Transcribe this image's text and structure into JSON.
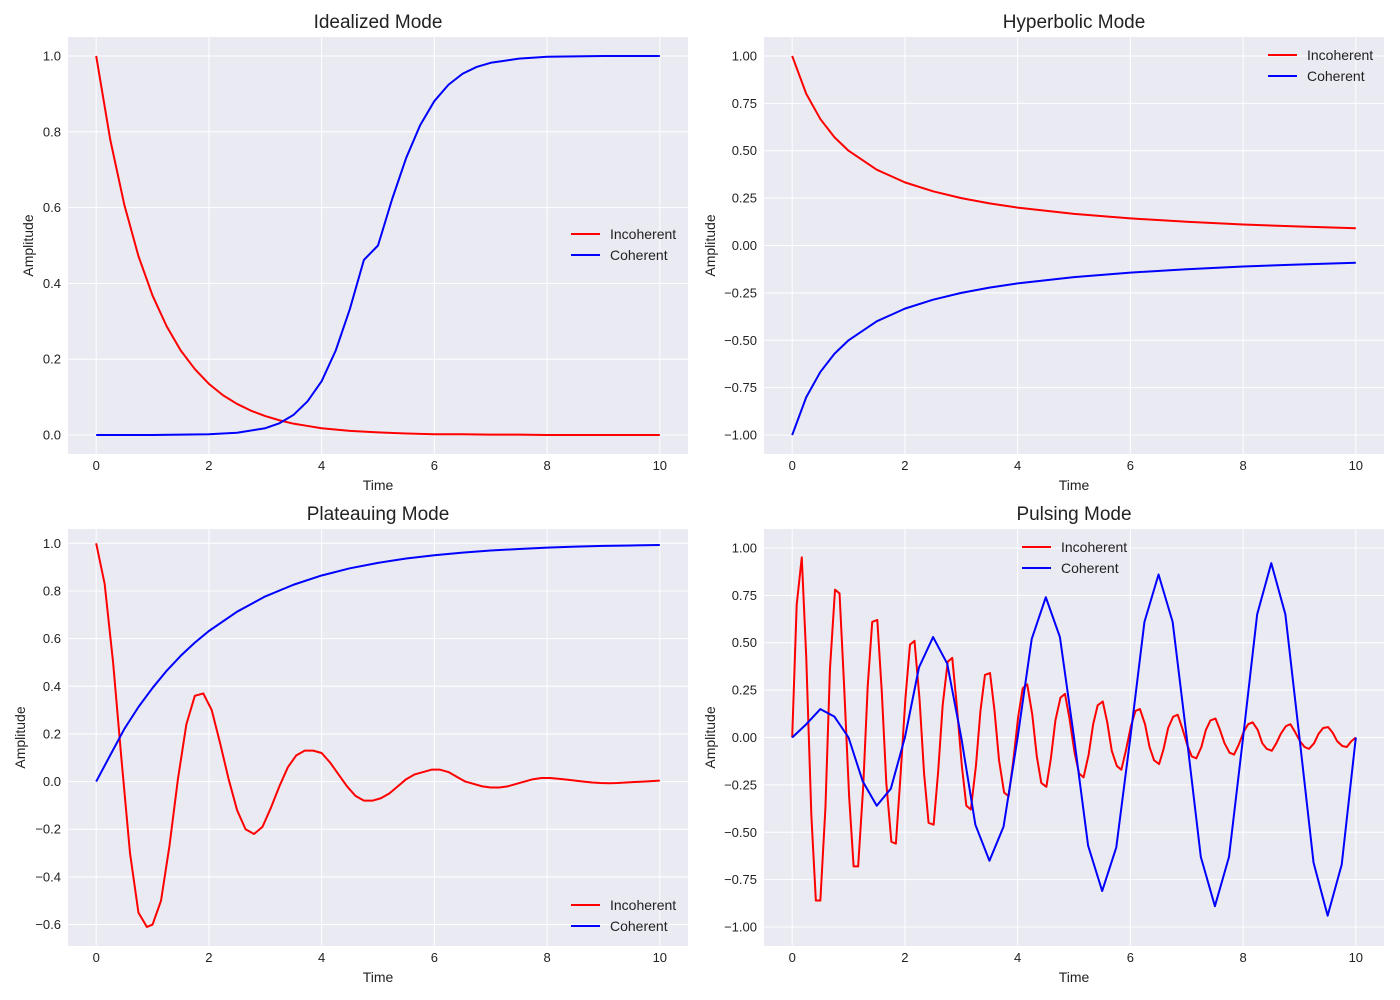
{
  "chart_data": [
    {
      "type": "line",
      "title": "Idealized Mode",
      "xlabel": "Time",
      "ylabel": "Amplitude",
      "xlim": [
        -0.5,
        10.5
      ],
      "ylim": [
        -0.05,
        1.05
      ],
      "xticks": [
        0,
        2,
        4,
        6,
        8,
        10
      ],
      "yticks": [
        0.0,
        0.2,
        0.4,
        0.6,
        0.8,
        1.0
      ],
      "ytick_labels": [
        "0.0",
        "0.2",
        "0.4",
        "0.6",
        "0.8",
        "1.0"
      ],
      "grid": true,
      "legend_position": "center-right",
      "series": [
        {
          "name": "Incoherent",
          "color": "#ff0000",
          "x": [
            0,
            0.25,
            0.5,
            0.75,
            1,
            1.25,
            1.5,
            1.75,
            2,
            2.25,
            2.5,
            2.75,
            3,
            3.25,
            3.5,
            3.75,
            4,
            4.5,
            5,
            5.5,
            6,
            6.5,
            7,
            7.5,
            8,
            8.5,
            9,
            9.5,
            10
          ],
          "y": [
            1.0,
            0.779,
            0.607,
            0.472,
            0.368,
            0.287,
            0.223,
            0.174,
            0.135,
            0.105,
            0.082,
            0.064,
            0.05,
            0.039,
            0.03,
            0.024,
            0.018,
            0.011,
            0.007,
            0.004,
            0.002,
            0.002,
            0.001,
            0.001,
            0.0,
            0.0,
            0.0,
            0.0,
            0.0
          ]
        },
        {
          "name": "Coherent",
          "color": "#0000ff",
          "x": [
            0,
            0.5,
            1,
            1.5,
            2,
            2.5,
            3,
            3.25,
            3.5,
            3.75,
            4,
            4.25,
            4.5,
            4.75,
            5,
            5.25,
            5.5,
            5.75,
            6,
            6.25,
            6.5,
            6.75,
            7,
            7.5,
            8,
            8.5,
            9,
            9.5,
            10
          ],
          "y": [
            0.0,
            0.0,
            0.0,
            0.001,
            0.002,
            0.006,
            0.018,
            0.031,
            0.053,
            0.089,
            0.142,
            0.223,
            0.332,
            0.462,
            0.5,
            0.622,
            0.731,
            0.818,
            0.881,
            0.924,
            0.953,
            0.971,
            0.982,
            0.993,
            0.998,
            0.999,
            1.0,
            1.0,
            1.0
          ]
        }
      ]
    },
    {
      "type": "line",
      "title": "Hyperbolic Mode",
      "xlabel": "Time",
      "ylabel": "Amplitude",
      "xlim": [
        -0.5,
        10.5
      ],
      "ylim": [
        -1.1,
        1.1
      ],
      "xticks": [
        0,
        2,
        4,
        6,
        8,
        10
      ],
      "yticks": [
        -1.0,
        -0.75,
        -0.5,
        -0.25,
        0.0,
        0.25,
        0.5,
        0.75,
        1.0
      ],
      "ytick_labels": [
        "−1.00",
        "−0.75",
        "−0.50",
        "−0.25",
        "0.00",
        "0.25",
        "0.50",
        "0.75",
        "1.00"
      ],
      "grid": true,
      "legend_position": "top-right",
      "series": [
        {
          "name": "Incoherent",
          "color": "#ff0000",
          "x": [
            0,
            0.25,
            0.5,
            0.75,
            1,
            1.5,
            2,
            2.5,
            3,
            3.5,
            4,
            5,
            6,
            7,
            8,
            9,
            10
          ],
          "y": [
            1.0,
            0.8,
            0.667,
            0.571,
            0.5,
            0.4,
            0.333,
            0.286,
            0.25,
            0.222,
            0.2,
            0.167,
            0.143,
            0.125,
            0.111,
            0.1,
            0.091
          ]
        },
        {
          "name": "Coherent",
          "color": "#0000ff",
          "x": [
            0,
            0.25,
            0.5,
            0.75,
            1,
            1.5,
            2,
            2.5,
            3,
            3.5,
            4,
            5,
            6,
            7,
            8,
            9,
            10
          ],
          "y": [
            -1.0,
            -0.8,
            -0.667,
            -0.571,
            -0.5,
            -0.4,
            -0.333,
            -0.286,
            -0.25,
            -0.222,
            -0.2,
            -0.167,
            -0.143,
            -0.125,
            -0.111,
            -0.1,
            -0.091
          ]
        }
      ]
    },
    {
      "type": "line",
      "title": "Plateauing Mode",
      "xlabel": "Time",
      "ylabel": "Amplitude",
      "xlim": [
        -0.5,
        10.5
      ],
      "ylim": [
        -0.69,
        1.06
      ],
      "xticks": [
        0,
        2,
        4,
        6,
        8,
        10
      ],
      "yticks": [
        -0.6,
        -0.4,
        -0.2,
        0.0,
        0.2,
        0.4,
        0.6,
        0.8,
        1.0
      ],
      "ytick_labels": [
        "−0.6",
        "−0.4",
        "−0.2",
        "0.0",
        "0.2",
        "0.4",
        "0.6",
        "0.8",
        "1.0"
      ],
      "grid": true,
      "legend_position": "bottom-right",
      "series": [
        {
          "name": "Incoherent",
          "color": "#ff0000",
          "x": [
            0,
            0.15,
            0.3,
            0.45,
            0.6,
            0.75,
            0.9,
            1.0,
            1.15,
            1.3,
            1.45,
            1.6,
            1.75,
            1.9,
            2.05,
            2.2,
            2.35,
            2.5,
            2.65,
            2.8,
            2.95,
            3.1,
            3.25,
            3.4,
            3.55,
            3.7,
            3.85,
            4.0,
            4.15,
            4.3,
            4.45,
            4.6,
            4.75,
            4.9,
            5.05,
            5.2,
            5.35,
            5.5,
            5.65,
            5.8,
            5.95,
            6.1,
            6.25,
            6.4,
            6.55,
            6.7,
            6.85,
            7.0,
            7.15,
            7.3,
            7.45,
            7.6,
            7.75,
            7.9,
            8.05,
            8.2,
            8.35,
            8.5,
            8.65,
            8.8,
            8.95,
            9.1,
            9.25,
            9.4,
            9.55,
            9.7,
            9.85,
            10.0
          ],
          "y": [
            1.0,
            0.83,
            0.5,
            0.09,
            -0.3,
            -0.55,
            -0.61,
            -0.6,
            -0.5,
            -0.27,
            0.01,
            0.24,
            0.36,
            0.37,
            0.3,
            0.16,
            0.01,
            -0.12,
            -0.2,
            -0.22,
            -0.19,
            -0.11,
            -0.02,
            0.06,
            0.11,
            0.13,
            0.13,
            0.12,
            0.08,
            0.03,
            -0.02,
            -0.06,
            -0.08,
            -0.08,
            -0.07,
            -0.05,
            -0.02,
            0.01,
            0.03,
            0.04,
            0.05,
            0.05,
            0.04,
            0.02,
            0.0,
            -0.01,
            -0.02,
            -0.025,
            -0.025,
            -0.02,
            -0.01,
            0.0,
            0.01,
            0.015,
            0.015,
            0.012,
            0.008,
            0.004,
            0.0,
            -0.004,
            -0.006,
            -0.007,
            -0.006,
            -0.004,
            -0.002,
            0.0,
            0.002,
            0.004
          ]
        },
        {
          "name": "Coherent",
          "color": "#0000ff",
          "x": [
            0,
            0.25,
            0.5,
            0.75,
            1,
            1.25,
            1.5,
            1.75,
            2,
            2.5,
            3,
            3.5,
            4,
            4.5,
            5,
            5.5,
            6,
            6.5,
            7,
            7.5,
            8,
            8.5,
            9,
            9.5,
            10
          ],
          "y": [
            0.0,
            0.111,
            0.221,
            0.313,
            0.393,
            0.465,
            0.528,
            0.583,
            0.632,
            0.713,
            0.777,
            0.826,
            0.865,
            0.895,
            0.918,
            0.936,
            0.95,
            0.961,
            0.97,
            0.976,
            0.982,
            0.986,
            0.989,
            0.991,
            0.993
          ]
        }
      ]
    },
    {
      "type": "line",
      "title": "Pulsing Mode",
      "xlabel": "Time",
      "ylabel": "Amplitude",
      "xlim": [
        -0.5,
        10.5
      ],
      "ylim": [
        -1.1,
        1.1
      ],
      "xticks": [
        0,
        2,
        4,
        6,
        8,
        10
      ],
      "yticks": [
        -1.0,
        -0.75,
        -0.5,
        -0.25,
        0.0,
        0.25,
        0.5,
        0.75,
        1.0
      ],
      "ytick_labels": [
        "−1.00",
        "−0.75",
        "−0.50",
        "−0.25",
        "0.00",
        "0.25",
        "0.50",
        "0.75",
        "1.00"
      ],
      "grid": true,
      "legend_position": "top-center",
      "series": [
        {
          "name": "Incoherent",
          "color": "#ff0000",
          "x": [
            0,
            0.08,
            0.17,
            0.25,
            0.34,
            0.42,
            0.5,
            0.59,
            0.67,
            0.76,
            0.84,
            0.92,
            1.01,
            1.09,
            1.17,
            1.26,
            1.34,
            1.42,
            1.51,
            1.59,
            1.67,
            1.76,
            1.84,
            1.92,
            2.01,
            2.09,
            2.17,
            2.26,
            2.34,
            2.42,
            2.51,
            2.59,
            2.67,
            2.76,
            2.84,
            2.92,
            3.01,
            3.09,
            3.17,
            3.26,
            3.34,
            3.42,
            3.51,
            3.59,
            3.67,
            3.76,
            3.84,
            3.92,
            4.01,
            4.09,
            4.17,
            4.26,
            4.34,
            4.42,
            4.51,
            4.59,
            4.67,
            4.76,
            4.84,
            4.92,
            5.01,
            5.09,
            5.17,
            5.26,
            5.34,
            5.42,
            5.51,
            5.59,
            5.67,
            5.76,
            5.84,
            5.92,
            6.01,
            6.09,
            6.17,
            6.26,
            6.34,
            6.42,
            6.51,
            6.59,
            6.67,
            6.76,
            6.84,
            6.92,
            7.01,
            7.09,
            7.17,
            7.26,
            7.34,
            7.42,
            7.51,
            7.59,
            7.67,
            7.76,
            7.84,
            7.92,
            8.01,
            8.09,
            8.17,
            8.26,
            8.34,
            8.42,
            8.51,
            8.59,
            8.67,
            8.76,
            8.84,
            8.92,
            9.01,
            9.09,
            9.17,
            9.26,
            9.34,
            9.42,
            9.51,
            9.59,
            9.67,
            9.76,
            9.84,
            9.92,
            10.0
          ],
          "y": [
            0.0,
            0.7,
            0.95,
            0.42,
            -0.41,
            -0.86,
            -0.86,
            -0.37,
            0.36,
            0.78,
            0.76,
            0.28,
            -0.31,
            -0.68,
            -0.68,
            -0.26,
            0.27,
            0.61,
            0.62,
            0.24,
            -0.24,
            -0.55,
            -0.56,
            -0.21,
            0.21,
            0.49,
            0.51,
            0.2,
            -0.19,
            -0.45,
            -0.46,
            -0.18,
            0.17,
            0.4,
            0.42,
            0.17,
            -0.15,
            -0.36,
            -0.38,
            -0.15,
            0.14,
            0.33,
            0.34,
            0.14,
            -0.12,
            -0.29,
            -0.31,
            -0.13,
            0.11,
            0.26,
            0.28,
            0.12,
            -0.1,
            -0.24,
            -0.26,
            -0.11,
            0.09,
            0.21,
            0.23,
            0.1,
            -0.08,
            -0.19,
            -0.21,
            -0.09,
            0.07,
            0.17,
            0.19,
            0.08,
            -0.07,
            -0.15,
            -0.17,
            -0.07,
            0.06,
            0.14,
            0.15,
            0.07,
            -0.05,
            -0.12,
            -0.14,
            -0.06,
            0.05,
            0.11,
            0.12,
            0.05,
            -0.04,
            -0.1,
            -0.11,
            -0.05,
            0.04,
            0.09,
            0.1,
            0.04,
            -0.03,
            -0.08,
            -0.09,
            -0.04,
            0.03,
            0.07,
            0.08,
            0.04,
            -0.03,
            -0.06,
            -0.07,
            -0.03,
            0.02,
            0.06,
            0.07,
            0.03,
            -0.02,
            -0.05,
            -0.06,
            -0.03,
            0.02,
            0.05,
            0.055,
            0.025,
            -0.02,
            -0.045,
            -0.05,
            -0.02,
            0.0
          ]
        },
        {
          "name": "Coherent",
          "color": "#0000ff",
          "x": [
            0,
            0.25,
            0.5,
            0.75,
            1.0,
            1.25,
            1.5,
            1.75,
            2.0,
            2.25,
            2.5,
            2.75,
            3.0,
            3.25,
            3.5,
            3.75,
            4.0,
            4.25,
            4.5,
            4.75,
            5.0,
            5.25,
            5.5,
            5.75,
            6.0,
            6.25,
            6.5,
            6.75,
            7.0,
            7.25,
            7.5,
            7.75,
            8.0,
            8.25,
            8.5,
            8.75,
            9.0,
            9.25,
            9.5,
            9.75,
            10.0
          ],
          "y": [
            0.0,
            0.07,
            0.15,
            0.11,
            0.0,
            -0.23,
            -0.36,
            -0.27,
            0.0,
            0.37,
            0.53,
            0.39,
            0.0,
            -0.46,
            -0.65,
            -0.47,
            0.0,
            0.52,
            0.74,
            0.53,
            0.0,
            -0.57,
            -0.81,
            -0.58,
            0.0,
            0.61,
            0.86,
            0.61,
            0.0,
            -0.63,
            -0.89,
            -0.63,
            0.0,
            0.65,
            0.92,
            0.65,
            0.0,
            -0.66,
            -0.94,
            -0.67,
            0.0
          ]
        }
      ]
    }
  ]
}
